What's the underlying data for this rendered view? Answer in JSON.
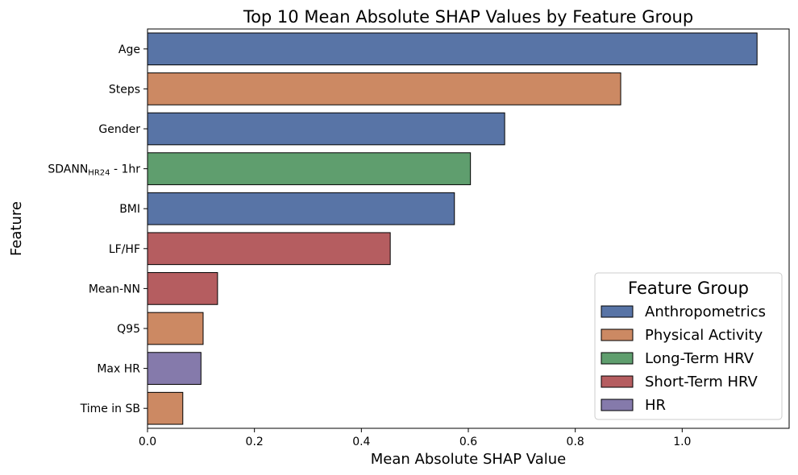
{
  "chart_data": {
    "type": "bar",
    "orientation": "horizontal",
    "title": "Top 10 Mean Absolute SHAP Values by Feature Group",
    "xlabel": "Mean Absolute SHAP Value",
    "ylabel": "Feature",
    "xlim": [
      0,
      1.2
    ],
    "xticks": [
      "0.0",
      "0.2",
      "0.4",
      "0.6",
      "0.8",
      "1.0"
    ],
    "grid": false,
    "legend_placement": "bottom-right",
    "legend_title": "Feature Group",
    "groups": [
      {
        "name": "Anthropometrics",
        "color": "#5874a6"
      },
      {
        "name": "Physical Activity",
        "color": "#cc8963"
      },
      {
        "name": "Long-Term HRV",
        "color": "#5f9e6e"
      },
      {
        "name": "Short-Term HRV",
        "color": "#b55d60"
      },
      {
        "name": "HR",
        "color": "#857aab"
      }
    ],
    "bars": [
      {
        "feature": "Age",
        "value": 1.14,
        "group": "Anthropometrics"
      },
      {
        "feature": "Steps",
        "value": 0.885,
        "group": "Physical Activity"
      },
      {
        "feature": "Gender",
        "value": 0.668,
        "group": "Anthropometrics"
      },
      {
        "feature": "SDANN",
        "feature_subscript": "HR24",
        "feature_suffix": " - 1hr",
        "value": 0.604,
        "group": "Long-Term HRV"
      },
      {
        "feature": "BMI",
        "value": 0.574,
        "group": "Anthropometrics"
      },
      {
        "feature": "LF/HF",
        "value": 0.454,
        "group": "Short-Term HRV"
      },
      {
        "feature": "Mean-NN",
        "value": 0.131,
        "group": "Short-Term HRV"
      },
      {
        "feature": "Q95",
        "value": 0.104,
        "group": "Physical Activity"
      },
      {
        "feature": "Max HR",
        "value": 0.1,
        "group": "HR"
      },
      {
        "feature": "Time in SB",
        "value": 0.066,
        "group": "Physical Activity"
      }
    ]
  }
}
